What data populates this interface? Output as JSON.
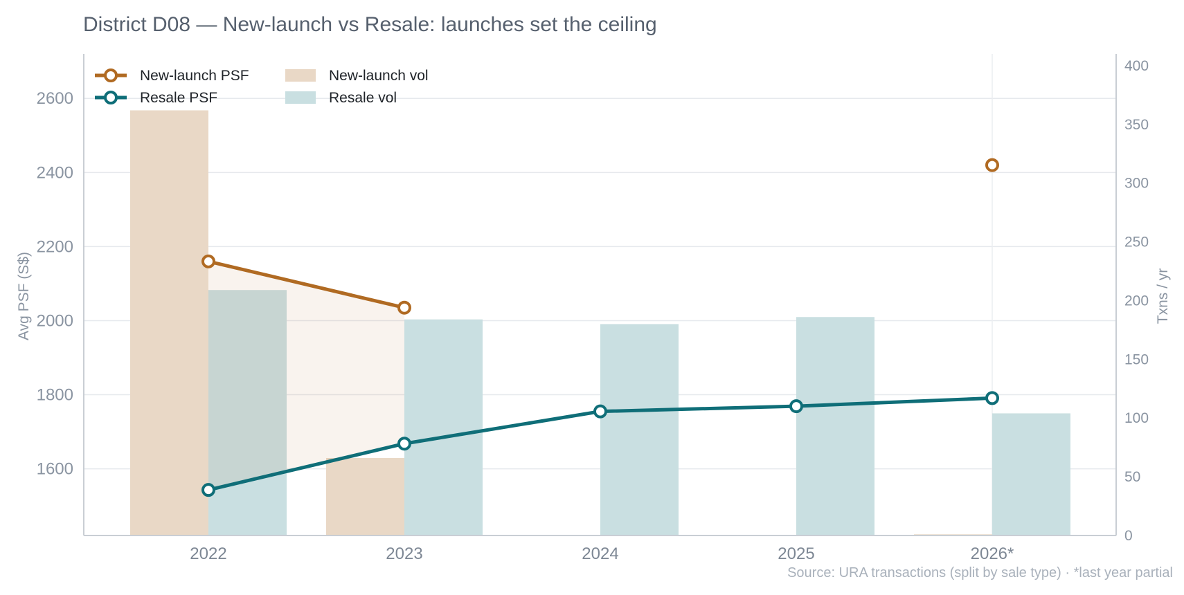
{
  "chart_data": {
    "type": "bar",
    "title": "District D08 — New-launch vs Resale: launches set the ceiling",
    "categories": [
      "2022",
      "2023",
      "2024",
      "2025",
      "2026*"
    ],
    "y_left": {
      "label": "Avg PSF (S$)",
      "ticks": [
        1600,
        1800,
        2000,
        2200,
        2400,
        2600
      ],
      "range": [
        1420,
        2720
      ]
    },
    "y_right": {
      "label": "Txns / yr",
      "ticks": [
        0,
        50,
        100,
        150,
        200,
        250,
        300,
        350,
        400
      ],
      "range": [
        0,
        410
      ]
    },
    "series": [
      {
        "name": "New-launch PSF",
        "kind": "line",
        "axis": "left",
        "color": "#b06a22",
        "values": [
          2160,
          2035,
          null,
          null,
          2420
        ]
      },
      {
        "name": "Resale PSF",
        "kind": "line",
        "axis": "left",
        "color": "#0f6e78",
        "values": [
          1543,
          1668,
          1755,
          1769,
          1791
        ]
      },
      {
        "name": "New-launch vol",
        "kind": "bar",
        "axis": "right",
        "color": "#e9d8c6",
        "values": [
          362,
          66,
          0,
          0,
          1
        ]
      },
      {
        "name": "Resale vol",
        "kind": "bar",
        "axis": "right",
        "color": "#c9dfe1",
        "values": [
          209,
          184,
          180,
          186,
          104
        ]
      }
    ],
    "grid": true,
    "legend_position": "top-left",
    "source_note": "Source: URA transactions (split by sale type) · *last year partial"
  }
}
